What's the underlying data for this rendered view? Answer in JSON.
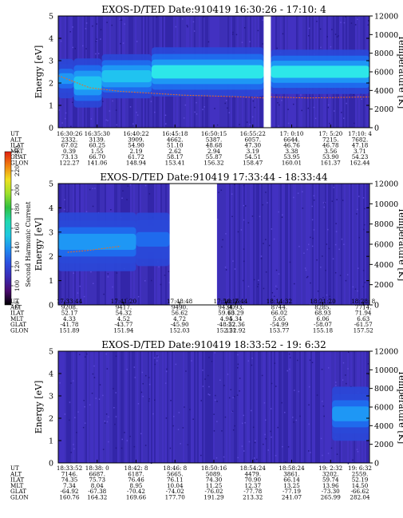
{
  "chart_data": {
    "type": "heatmap",
    "colorbar": {
      "label": "Second Harmonic Current",
      "ticks": [
        "80",
        "100",
        "120",
        "140",
        "160",
        "180",
        "200",
        "220",
        "240"
      ],
      "range": [
        80,
        240
      ],
      "colors": [
        "#000000",
        "#4a0a6e",
        "#3a2bb5",
        "#2b4fe0",
        "#1e8cf0",
        "#1ec8e0",
        "#20d8b0",
        "#30c040",
        "#9ee02a",
        "#f0e020",
        "#f08010",
        "#e02010"
      ]
    },
    "panels": [
      {
        "title": "EXOS-D/TED   Date:910419  16:30:26 - 17:10: 4",
        "ylabel": "Energy [eV]",
        "y2label": "Temperature [K]",
        "ylim": [
          0,
          5
        ],
        "y2lim": [
          0,
          12000
        ],
        "yticks": [
          "0",
          "1",
          "2",
          "3",
          "4",
          "5"
        ],
        "y2ticks": [
          "0",
          "2000",
          "4000",
          "6000",
          "8000",
          "10000",
          "12000"
        ],
        "time_range": [
          "16:30:26",
          "17:10:4"
        ],
        "data_gaps": [
          [
            0.66,
            0.683
          ]
        ],
        "bands": [
          {
            "x": [
              0.0,
              0.05
            ],
            "center": 2.2,
            "width": 0.4,
            "intensity": 0.55
          },
          {
            "x": [
              0.05,
              0.14
            ],
            "center": 2.0,
            "width": 0.5,
            "intensity": 0.75
          },
          {
            "x": [
              0.14,
              0.3
            ],
            "center": 2.3,
            "width": 0.45,
            "intensity": 0.8
          },
          {
            "x": [
              0.3,
              0.66
            ],
            "center": 2.5,
            "width": 0.5,
            "intensity": 0.85
          },
          {
            "x": [
              0.683,
              1.0
            ],
            "center": 2.5,
            "width": 0.45,
            "intensity": 0.85
          }
        ],
        "temperature_trace": [
          [
            0.0,
            5600
          ],
          [
            0.1,
            4300
          ],
          [
            0.2,
            3900
          ],
          [
            0.3,
            3700
          ],
          [
            0.4,
            3500
          ],
          [
            0.5,
            3400
          ],
          [
            0.6,
            3300
          ],
          [
            0.66,
            3200
          ],
          [
            0.683,
            3300
          ],
          [
            0.8,
            3200
          ],
          [
            0.9,
            3250
          ],
          [
            1.0,
            3300
          ]
        ],
        "ephemeris": {
          "labels": [
            "UT",
            "ALT",
            "ILAT",
            "MLT",
            "GLAT",
            "GLON"
          ],
          "columns": [
            [
              "16:30:26",
              "2332.",
              "67.02",
              "0.39",
              "73.13",
              "122.27"
            ],
            [
              "16:35:30",
              "3139.",
              "60.25",
              "1.55",
              "66.70",
              "141.06"
            ],
            [
              "16:40:22",
              "3909.",
              "54.90",
              "2.19",
              "61.72",
              "148.94"
            ],
            [
              "16:45:18",
              "4662.",
              "51.10",
              "2.62",
              "58.17",
              "153.41"
            ],
            [
              "16:50:15",
              "5387.",
              "48.68",
              "2.94",
              "55.87",
              "156.32"
            ],
            [
              "16:55:22",
              "6057.",
              "47.30",
              "3.19",
              "54.51",
              "158.47"
            ],
            [
              "17: 0:10",
              "6644.",
              "46.76",
              "3.38",
              "53.95",
              "160.01"
            ],
            [
              "17: 5:20",
              "7215.",
              "46.78",
              "3.56",
              "53.90",
              "161.37"
            ],
            [
              "17:10: 4",
              "7682.",
              "47.18",
              "3.71",
              "54.23",
              "162.44"
            ]
          ]
        }
      },
      {
        "title": "EXOS-D/TED   Date:910419  17:33:44 - 18:33:44",
        "ylabel": "Energy [eV]",
        "y2label": "Temperature [K]",
        "ylim": [
          0,
          5
        ],
        "y2lim": [
          0,
          12000
        ],
        "yticks": [
          "0",
          "1",
          "2",
          "3",
          "4",
          "5"
        ],
        "y2ticks": [
          "0",
          "2000",
          "4000",
          "6000",
          "8000",
          "10000",
          "12000"
        ],
        "time_range": [
          "17:33:44",
          "18:33:44"
        ],
        "data_gaps": [
          [
            0.358,
            0.51
          ]
        ],
        "bands": [
          {
            "x": [
              0.0,
              0.25
            ],
            "center": 2.6,
            "width": 0.55,
            "intensity": 0.6
          },
          {
            "x": [
              0.25,
              0.358
            ],
            "center": 2.7,
            "width": 0.5,
            "intensity": 0.4
          }
        ],
        "temperature_trace": [
          [
            0.03,
            5200
          ],
          [
            0.1,
            5400
          ],
          [
            0.2,
            5800
          ]
        ],
        "ephemeris": {
          "labels": [
            "UT",
            "ALT",
            "ILAT",
            "MLT",
            "GLAT",
            "GLON"
          ],
          "columns": [
            [
              "17:33:44",
              "9208.",
              "52.17",
              "4.33",
              "-41.78",
              "151.89"
            ],
            [
              "17:41:20",
              "9417.",
              "54.32",
              "4.52",
              "-43.77",
              "151.94"
            ],
            [
              "17:48:48",
              "9490.",
              "56.62",
              "4.72",
              "-45.90",
              "152.03"
            ],
            [
              "17:56:16",
              "9434.",
              "59.10",
              "4.94",
              "-48.22",
              "152.21"
            ],
            [
              "18: 7:44",
              "9093.",
              "63.29",
              "5.34",
              "-52.36",
              "152.92"
            ],
            [
              "18:14:32",
              "8744.",
              "66.02",
              "5.65",
              "-54.99",
              "153.77"
            ],
            [
              "18:21:20",
              "8285.",
              "68.93",
              "6.06",
              "-58.07",
              "155.18"
            ],
            [
              "18:28: 8",
              "7714.",
              "71.94",
              "6.63",
              "-61.57",
              "157.52"
            ]
          ]
        }
      },
      {
        "title": "EXOS-D/TED   Date:910419  18:33:52 - 19: 6:32",
        "ylabel": "Energy [eV]",
        "y2label": "Temperature [K]",
        "ylim": [
          0,
          5
        ],
        "y2lim": [
          0,
          12000
        ],
        "yticks": [
          "0",
          "1",
          "2",
          "3",
          "4",
          "5"
        ],
        "y2ticks": [
          "0",
          "2000",
          "4000",
          "6000",
          "8000",
          "10000",
          "12000"
        ],
        "time_range": [
          "18:33:52",
          "19:6:32"
        ],
        "data_gaps": [],
        "bands": [
          {
            "x": [
              0.88,
              1.0
            ],
            "center": 2.2,
            "width": 0.55,
            "intensity": 0.55
          }
        ],
        "temperature_trace": [],
        "ephemeris": {
          "labels": [
            "UT",
            "ALT",
            "ILAT",
            "MLT",
            "GLAT",
            "GLON"
          ],
          "columns": [
            [
              "18:33:52",
              "7146.",
              "74.35",
              "7.34",
              "-64.92",
              "160.76"
            ],
            [
              "18:38: 0",
              "6687.",
              "75.73",
              "8.04",
              "-67.38",
              "164.32"
            ],
            [
              "18:42: 8",
              "6187.",
              "76.46",
              "8.95",
              "-70.42",
              "169.66"
            ],
            [
              "18:46: 8",
              "5665.",
              "76.11",
              "10.04",
              "-74.02",
              "177.70"
            ],
            [
              "18:50:16",
              "5089.",
              "74.30",
              "11.25",
              "-76.02",
              "191.29"
            ],
            [
              "18:54:24",
              "4479.",
              "70.90",
              "12.37",
              "-77.78",
              "213.32"
            ],
            [
              "18:58:24",
              "3861.",
              "66.14",
              "13.25",
              "-77.19",
              "241.07"
            ],
            [
              "19: 2:32",
              "3202.",
              "59.74",
              "13.96",
              "-73.30",
              "265.99"
            ],
            [
              "19: 6:32",
              "2559.",
              "52.19",
              "14.50",
              "-66.62",
              "282.04"
            ]
          ]
        }
      }
    ]
  }
}
